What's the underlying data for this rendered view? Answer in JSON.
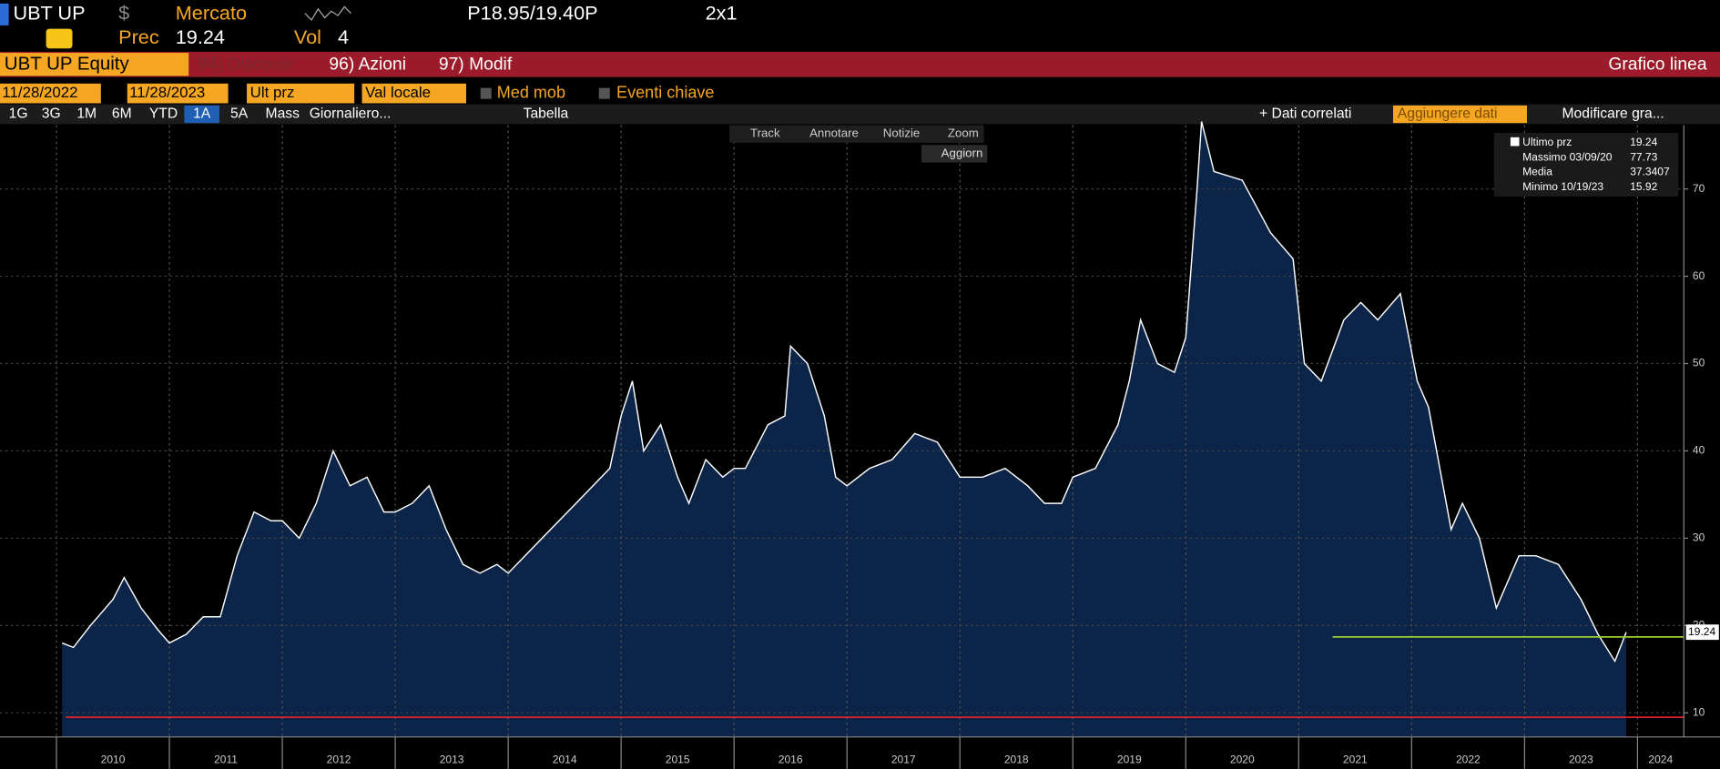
{
  "header": {
    "ticker": "UBT UP",
    "currency": "$",
    "market": "Mercato",
    "quote": "P18.95/19.40P",
    "layout": "2x1",
    "prev_label": "Prec",
    "prev": "19.24",
    "vol_label": "Vol",
    "vol": "4"
  },
  "toolbar": {
    "security": "UBT UP Equity",
    "discover": "94) Discover",
    "actions": "96) Azioni",
    "modify": "97) Modif",
    "chart_name": "Grafico linea"
  },
  "controls": {
    "start": "11/28/2022",
    "end": "11/28/2023",
    "field": "Ult prz",
    "currency": "Val locale",
    "moving_avg": "Med mob",
    "events": "Eventi chiave"
  },
  "periods": {
    "items": [
      "1G",
      "3G",
      "1M",
      "6M",
      "YTD",
      "1A",
      "5A",
      "Mass",
      "Giornaliero..."
    ],
    "active": "1A",
    "table": "Tabella",
    "related": "+ Dati correlati",
    "add_data": "Aggiungere dati",
    "edit_chart": "Modificare gra..."
  },
  "chart_tools": [
    "Track",
    "Annotare",
    "Notizie",
    "Zoom"
  ],
  "refresh": "Aggiorn",
  "legend": [
    {
      "label": "Ultimo prz",
      "value": "19.24"
    },
    {
      "label": "Massimo 03/09/20",
      "value": "77.73"
    },
    {
      "label": "Media",
      "value": "37.3407"
    },
    {
      "label": "Minimo 10/19/23",
      "value": "15.92"
    }
  ],
  "chart_data": {
    "type": "area",
    "x": [
      2010.05,
      2010.15,
      2010.3,
      2010.5,
      2010.6,
      2010.75,
      2010.9,
      2011.0,
      2011.15,
      2011.3,
      2011.45,
      2011.6,
      2011.75,
      2011.9,
      2012.0,
      2012.15,
      2012.3,
      2012.45,
      2012.6,
      2012.75,
      2012.9,
      2013.0,
      2013.15,
      2013.3,
      2013.45,
      2013.6,
      2013.75,
      2013.9,
      2014.0,
      2014.15,
      2014.3,
      2014.45,
      2014.6,
      2014.75,
      2014.9,
      2015.0,
      2015.1,
      2015.2,
      2015.35,
      2015.5,
      2015.6,
      2015.75,
      2015.9,
      2016.0,
      2016.1,
      2016.3,
      2016.45,
      2016.5,
      2016.65,
      2016.8,
      2016.9,
      2017.0,
      2017.2,
      2017.4,
      2017.6,
      2017.8,
      2018.0,
      2018.2,
      2018.4,
      2018.6,
      2018.75,
      2018.9,
      2019.0,
      2019.2,
      2019.4,
      2019.5,
      2019.6,
      2019.75,
      2019.9,
      2020.0,
      2020.1,
      2020.14,
      2020.25,
      2020.5,
      2020.75,
      2020.95,
      2021.05,
      2021.2,
      2021.4,
      2021.55,
      2021.7,
      2021.9,
      2022.05,
      2022.15,
      2022.35,
      2022.45,
      2022.6,
      2022.75,
      2022.95,
      2023.1,
      2023.3,
      2023.5,
      2023.65,
      2023.8,
      2023.9
    ],
    "series": [
      {
        "name": "Ultimo prz",
        "color": "#ffffff",
        "fill": "#0b2448",
        "values": [
          18,
          17.5,
          20,
          23,
          25.5,
          22,
          19.5,
          18,
          19,
          21,
          21,
          28,
          33,
          32,
          32,
          30,
          34,
          40,
          36,
          37,
          33,
          33,
          34,
          36,
          31,
          27,
          26,
          27,
          26,
          28,
          30,
          32,
          34,
          36,
          38,
          44,
          48,
          40,
          43,
          37,
          34,
          39,
          37,
          38,
          38,
          43,
          44,
          52,
          50,
          44,
          37,
          36,
          38,
          39,
          42,
          41,
          37,
          37,
          38,
          36,
          34,
          34,
          37,
          38,
          43,
          48,
          55,
          50,
          49,
          53,
          70,
          77.73,
          72,
          71,
          65,
          62,
          50,
          48,
          55,
          57,
          55,
          58,
          48,
          45,
          31,
          34,
          30,
          22,
          28,
          28,
          27,
          23,
          19,
          15.92,
          19.24
        ]
      }
    ],
    "reference_lines": [
      {
        "value": 18.7,
        "color": "#9acd32"
      },
      {
        "value": 9.5,
        "color": "#e0202a"
      }
    ],
    "last_value_label": "19.24",
    "xlim": [
      2009.5,
      2024.41
    ],
    "xticks": [
      2010,
      2011,
      2012,
      2013,
      2014,
      2015,
      2016,
      2017,
      2018,
      2019,
      2020,
      2021,
      2022,
      2023,
      2024
    ],
    "ylim": [
      7.24,
      77.3
    ],
    "yticks": [
      10,
      20,
      30,
      40,
      50,
      60,
      70
    ],
    "grid": true
  }
}
